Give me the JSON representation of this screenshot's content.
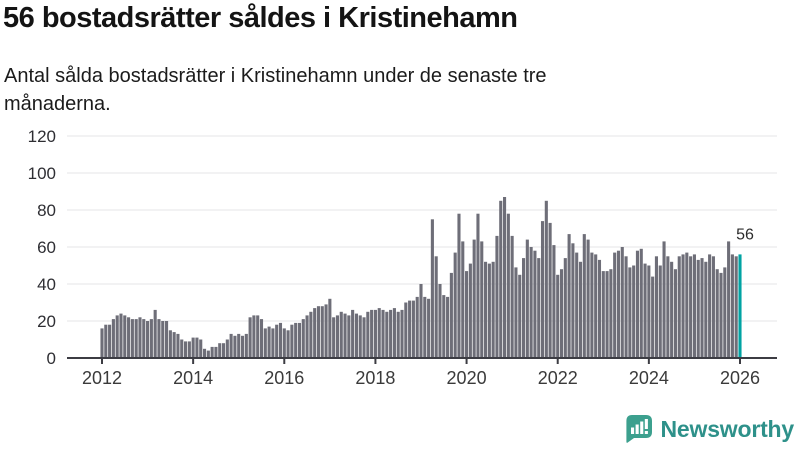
{
  "header": {
    "title": "56 bostadsrätter såldes i Kristinehamn",
    "subtitle": "Antal sålda bostadsrätter i Kristinehamn under de senaste tre månaderna.",
    "subtitle_lines": [
      "Antal sålda bostadsrätter i Kristinehamn under de senaste tre",
      "månaderna."
    ]
  },
  "chart_data": {
    "type": "bar",
    "title": "56 bostadsrätter såldes i Kristinehamn",
    "xlabel": "",
    "ylabel": "",
    "ylim": [
      0,
      120
    ],
    "grid": true,
    "legend": "none",
    "start": "2012-01",
    "end": "2026-01",
    "frequency": "monthly",
    "yticks": [
      0,
      20,
      40,
      60,
      80,
      100,
      120
    ],
    "xticks": [
      2012,
      2014,
      2016,
      2018,
      2020,
      2022,
      2024,
      2026
    ],
    "values": [
      16,
      18,
      18,
      21,
      23,
      24,
      23,
      22,
      21,
      21,
      22,
      21,
      20,
      21,
      26,
      21,
      20,
      20,
      15,
      14,
      13,
      10,
      9,
      9,
      11,
      11,
      10,
      5,
      4,
      6,
      6,
      8,
      8,
      10,
      13,
      12,
      13,
      12,
      13,
      22,
      23,
      23,
      21,
      16,
      17,
      16,
      18,
      19,
      16,
      15,
      18,
      19,
      19,
      21,
      23,
      25,
      27,
      28,
      28,
      29,
      32,
      22,
      23,
      25,
      24,
      23,
      26,
      24,
      23,
      22,
      25,
      26,
      26,
      27,
      26,
      25,
      26,
      27,
      25,
      26,
      30,
      31,
      31,
      33,
      40,
      33,
      32,
      75,
      55,
      40,
      34,
      33,
      46,
      57,
      78,
      63,
      47,
      51,
      64,
      78,
      63,
      52,
      51,
      52,
      66,
      85,
      87,
      78,
      66,
      49,
      45,
      54,
      64,
      60,
      58,
      54,
      74,
      85,
      73,
      61,
      45,
      48,
      54,
      67,
      62,
      57,
      52,
      67,
      64,
      57,
      56,
      53,
      47,
      47,
      48,
      57,
      58,
      60,
      55,
      49,
      50,
      58,
      59,
      51,
      50,
      44,
      55,
      50,
      63,
      55,
      52,
      48,
      55,
      56,
      57,
      55,
      56,
      53,
      54,
      52,
      56,
      55,
      48,
      46,
      49,
      63,
      56,
      55,
      56
    ],
    "highlight": {
      "index": 168,
      "value": 56,
      "label": "56"
    },
    "colors": {
      "bar": "#6e6e78",
      "highlight": "#00a3a3",
      "grid": "#e4e4e7",
      "axis": "#3c3c43"
    }
  },
  "footer": {
    "brand": "Newsworthy",
    "brand_color": "#2e918a",
    "icon": "newsworthy-logo-icon",
    "icon_color": "#3ca08e"
  }
}
